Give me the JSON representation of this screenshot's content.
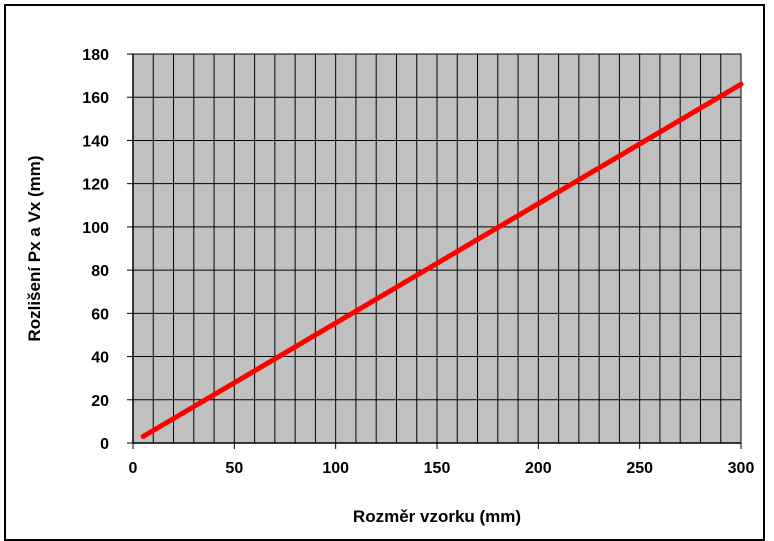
{
  "chart_data": {
    "type": "line",
    "title": "",
    "xlabel": "Rozměr vzorku (mm)",
    "ylabel": "Rozlišení Px a Vx (mm)",
    "xlim": [
      0,
      300
    ],
    "ylim": [
      0,
      180
    ],
    "x_ticks": [
      0,
      50,
      100,
      150,
      200,
      250,
      300
    ],
    "y_ticks": [
      0,
      20,
      40,
      60,
      80,
      100,
      120,
      140,
      160,
      180
    ],
    "x_tick_labels": [
      "0",
      "50",
      "100",
      "150",
      "200",
      "250",
      "300"
    ],
    "y_tick_labels": [
      "0",
      "20",
      "40",
      "60",
      "80",
      "100",
      "120",
      "140",
      "160",
      "180"
    ],
    "x_minor_step": 10,
    "grid": true,
    "series": [
      {
        "x": [
          5,
          300
        ],
        "y": [
          3,
          166
        ]
      }
    ]
  },
  "colors": {
    "plot_background": "#c0c0c0",
    "grid_line": "#000000",
    "series_line": "#ff0000"
  }
}
